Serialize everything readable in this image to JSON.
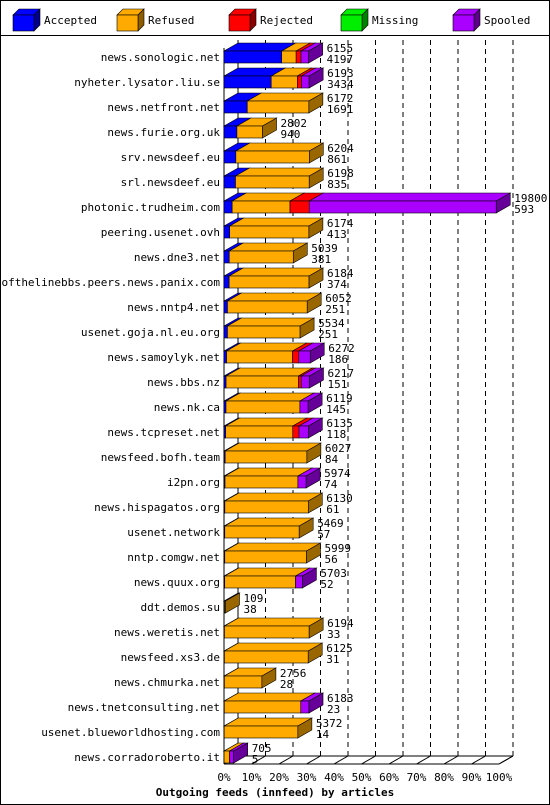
{
  "chart_data": {
    "type": "bar",
    "title": "Outgoing feeds (innfeed) by articles",
    "legend": [
      {
        "name": "Accepted",
        "color": "#0000ff"
      },
      {
        "name": "Refused",
        "color": "#ffaa00"
      },
      {
        "name": "Rejected",
        "color": "#ff0000"
      },
      {
        "name": "Missing",
        "color": "#00ee00"
      },
      {
        "name": "Spooled",
        "color": "#aa00ff"
      }
    ],
    "x_ticks": [
      "0%",
      "10%",
      "20%",
      "30%",
      "40%",
      "50%",
      "60%",
      "70%",
      "80%",
      "90%",
      "100%"
    ],
    "xlim": [
      0,
      100
    ],
    "stacked": true,
    "legend_position": "top",
    "rows": [
      {
        "label": "news.sonologic.net",
        "total": "6155",
        "accepted": "4197",
        "segments": [
          4197,
          1050,
          350,
          0,
          558
        ]
      },
      {
        "label": "nyheter.lysator.liu.se",
        "total": "6193",
        "accepted": "3434",
        "segments": [
          3434,
          1900,
          300,
          0,
          559
        ]
      },
      {
        "label": "news.netfront.net",
        "total": "6172",
        "accepted": "1691",
        "segments": [
          1691,
          4481,
          0,
          0,
          0
        ]
      },
      {
        "label": "news.furie.org.uk",
        "total": "2802",
        "accepted": "940",
        "segments": [
          940,
          1862,
          0,
          0,
          0
        ]
      },
      {
        "label": "srv.newsdeef.eu",
        "total": "6204",
        "accepted": "861",
        "segments": [
          861,
          5343,
          0,
          0,
          0
        ]
      },
      {
        "label": "srl.newsdeef.eu",
        "total": "6198",
        "accepted": "835",
        "segments": [
          835,
          5363,
          0,
          0,
          0
        ]
      },
      {
        "label": "photonic.trudheim.com",
        "total": "19800",
        "accepted": "593",
        "segments": [
          593,
          4207,
          1400,
          0,
          13600
        ]
      },
      {
        "label": "peering.usenet.ovh",
        "total": "6174",
        "accepted": "413",
        "segments": [
          413,
          5761,
          0,
          0,
          0
        ]
      },
      {
        "label": "news.dne3.net",
        "total": "5039",
        "accepted": "381",
        "segments": [
          381,
          4658,
          0,
          0,
          0
        ]
      },
      {
        "label": "endofthelinebbs.peers.news.panix.com",
        "total": "6184",
        "accepted": "374",
        "segments": [
          374,
          5810,
          0,
          0,
          0
        ]
      },
      {
        "label": "news.nntp4.net",
        "total": "6052",
        "accepted": "251",
        "segments": [
          251,
          5801,
          0,
          0,
          0
        ]
      },
      {
        "label": "usenet.goja.nl.eu.org",
        "total": "5534",
        "accepted": "251",
        "segments": [
          251,
          5283,
          0,
          0,
          0
        ]
      },
      {
        "label": "news.samoylyk.net",
        "total": "6272",
        "accepted": "186",
        "segments": [
          186,
          4800,
          450,
          0,
          836
        ]
      },
      {
        "label": "news.bbs.nz",
        "total": "6217",
        "accepted": "151",
        "segments": [
          151,
          5266,
          200,
          0,
          600
        ]
      },
      {
        "label": "news.nk.ca",
        "total": "6119",
        "accepted": "145",
        "segments": [
          145,
          5374,
          0,
          0,
          600
        ]
      },
      {
        "label": "news.tcpreset.net",
        "total": "6135",
        "accepted": "118",
        "segments": [
          118,
          4882,
          450,
          0,
          685
        ]
      },
      {
        "label": "newsfeed.bofh.team",
        "total": "6027",
        "accepted": "84",
        "segments": [
          84,
          5943,
          0,
          0,
          0
        ]
      },
      {
        "label": "i2pn.org",
        "total": "5974",
        "accepted": "74",
        "segments": [
          74,
          5300,
          0,
          0,
          600
        ]
      },
      {
        "label": "news.hispagatos.org",
        "total": "6130",
        "accepted": "61",
        "segments": [
          61,
          6069,
          0,
          0,
          0
        ]
      },
      {
        "label": "usenet.network",
        "total": "5469",
        "accepted": "57",
        "segments": [
          57,
          5412,
          0,
          0,
          0
        ]
      },
      {
        "label": "nntp.comgw.net",
        "total": "5999",
        "accepted": "56",
        "segments": [
          56,
          5943,
          0,
          0,
          0
        ]
      },
      {
        "label": "news.quux.org",
        "total": "5703",
        "accepted": "52",
        "segments": [
          52,
          5151,
          0,
          0,
          500
        ]
      },
      {
        "label": "ddt.demos.su",
        "total": "109",
        "accepted": "38",
        "segments": [
          38,
          71,
          0,
          0,
          0
        ]
      },
      {
        "label": "news.weretis.net",
        "total": "6194",
        "accepted": "33",
        "segments": [
          33,
          6161,
          0,
          0,
          0
        ]
      },
      {
        "label": "newsfeed.xs3.de",
        "total": "6125",
        "accepted": "31",
        "segments": [
          31,
          6094,
          0,
          0,
          0
        ]
      },
      {
        "label": "news.chmurka.net",
        "total": "2756",
        "accepted": "28",
        "segments": [
          28,
          2728,
          0,
          0,
          0
        ]
      },
      {
        "label": "news.tnetconsulting.net",
        "total": "6183",
        "accepted": "23",
        "segments": [
          23,
          5560,
          0,
          0,
          600
        ]
      },
      {
        "label": "usenet.blueworldhosting.com",
        "total": "5372",
        "accepted": "14",
        "segments": [
          14,
          5358,
          0,
          0,
          0
        ]
      },
      {
        "label": "news.corradoroberto.it",
        "total": "705",
        "accepted": "5",
        "segments": [
          5,
          400,
          0,
          0,
          300
        ]
      }
    ]
  }
}
